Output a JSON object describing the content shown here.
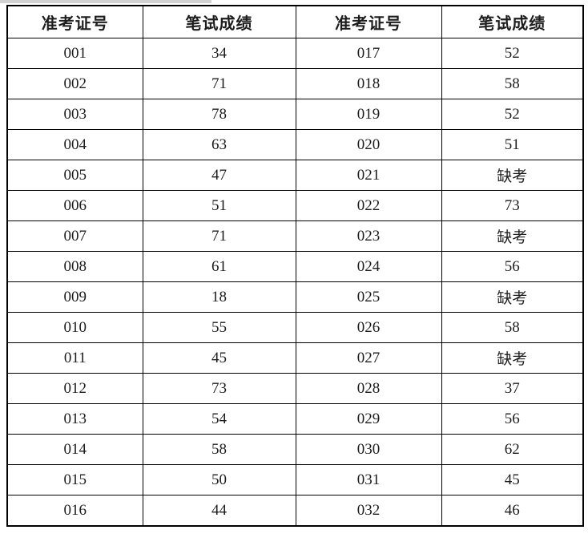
{
  "page": {
    "background_color": "#ffffff",
    "top_strip_color": "#d2d2d2"
  },
  "table": {
    "border_color": "#000000",
    "text_color": "#1d1d1d",
    "headers": [
      "准考证号",
      "笔试成绩",
      "准考证号",
      "笔试成绩"
    ],
    "absent_label": "缺考",
    "rows": [
      [
        "001",
        "34",
        "017",
        "52"
      ],
      [
        "002",
        "71",
        "018",
        "58"
      ],
      [
        "003",
        "78",
        "019",
        "52"
      ],
      [
        "004",
        "63",
        "020",
        "51"
      ],
      [
        "005",
        "47",
        "021",
        "缺考"
      ],
      [
        "006",
        "51",
        "022",
        "73"
      ],
      [
        "007",
        "71",
        "023",
        "缺考"
      ],
      [
        "008",
        "61",
        "024",
        "56"
      ],
      [
        "009",
        "18",
        "025",
        "缺考"
      ],
      [
        "010",
        "55",
        "026",
        "58"
      ],
      [
        "011",
        "45",
        "027",
        "缺考"
      ],
      [
        "012",
        "73",
        "028",
        "37"
      ],
      [
        "013",
        "54",
        "029",
        "56"
      ],
      [
        "014",
        "58",
        "030",
        "62"
      ],
      [
        "015",
        "50",
        "031",
        "45"
      ],
      [
        "016",
        "44",
        "032",
        "46"
      ]
    ]
  }
}
